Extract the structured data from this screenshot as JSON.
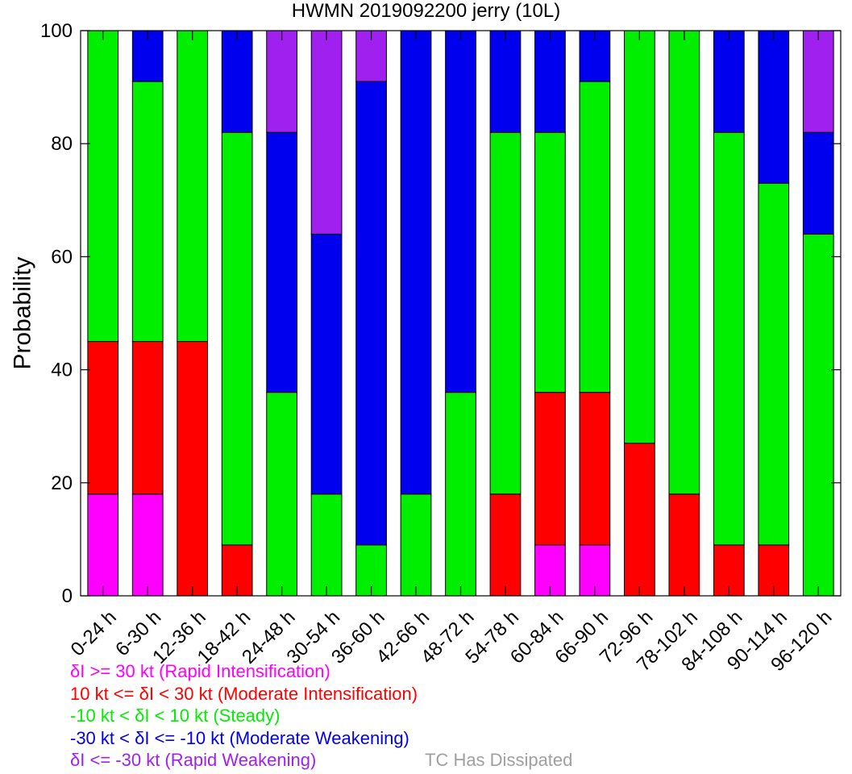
{
  "chart_data": {
    "type": "bar",
    "stacked": true,
    "title": "HWMN 2019092200 jerry (10L)",
    "ylabel": "Probability",
    "xlabel": "",
    "ylim": [
      0,
      100
    ],
    "yticks": [
      0,
      20,
      40,
      60,
      80,
      100
    ],
    "categories": [
      "0-24 h",
      "6-30 h",
      "12-36 h",
      "18-42 h",
      "24-48 h",
      "30-54 h",
      "36-60 h",
      "42-66 h",
      "48-72 h",
      "54-78 h",
      "60-84 h",
      "66-90 h",
      "72-96 h",
      "78-102 h",
      "84-108 h",
      "90-114 h",
      "96-120 h"
    ],
    "series": [
      {
        "name": "δI >= 30 kt (Rapid Intensification)",
        "color": "#ff00ff",
        "values": [
          18,
          18,
          0,
          0,
          0,
          0,
          0,
          0,
          0,
          0,
          9,
          9,
          0,
          0,
          0,
          0,
          0
        ]
      },
      {
        "name": "10 kt <= δI < 30 kt (Moderate Intensification)",
        "color": "#ff0000",
        "values": [
          27,
          27,
          45,
          9,
          0,
          0,
          0,
          0,
          0,
          18,
          27,
          27,
          27,
          18,
          9,
          9,
          0
        ]
      },
      {
        "name": "-10 kt < δI < 10 kt (Steady)",
        "color": "#00ee00",
        "values": [
          55,
          46,
          55,
          73,
          36,
          18,
          9,
          18,
          36,
          64,
          46,
          55,
          73,
          82,
          73,
          64,
          64
        ]
      },
      {
        "name": "-30 kt < δI <= -10 kt (Moderate Weakening)",
        "color": "#0000ee",
        "values": [
          0,
          9,
          0,
          18,
          46,
          46,
          82,
          82,
          64,
          18,
          18,
          9,
          0,
          0,
          18,
          27,
          18
        ]
      },
      {
        "name": "δI <= -30 kt (Rapid Weakening)",
        "color": "#a020f0",
        "values": [
          0,
          0,
          0,
          0,
          18,
          36,
          9,
          0,
          0,
          0,
          0,
          0,
          0,
          0,
          0,
          0,
          18
        ]
      }
    ],
    "extra_legend": {
      "label": "TC Has Dissipated",
      "color": "#a0a0a0"
    }
  }
}
